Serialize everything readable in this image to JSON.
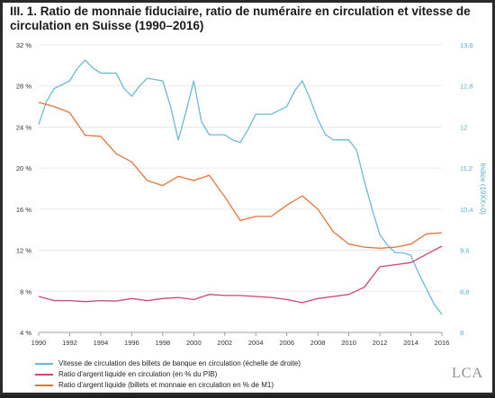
{
  "header": {
    "title": "III. 1. Ratio de monnaie fiduciaire, ratio de numéraire en circulation et vitesse de circulation en Suisse (1990–2016)"
  },
  "chart_data": {
    "type": "line",
    "title": "III. 1. Ratio de monnaie fiduciaire, ratio de numéraire en circulation et vitesse de circulation en Suisse (1990–2016)",
    "xlabel": "",
    "ylabel": "",
    "y2label": "Indice (19XX=0)",
    "xlim": [
      1990,
      2016
    ],
    "ylim": [
      4,
      32
    ],
    "y2lim": [
      8,
      13.6
    ],
    "x_ticks": [
      "1990",
      "1992",
      "1994",
      "1996",
      "1998",
      "2000",
      "2002",
      "2004",
      "2006",
      "2008",
      "2010",
      "2012",
      "2014",
      "2016"
    ],
    "y_ticks": [
      "4 %",
      "8 %",
      "12 %",
      "16 %",
      "20 %",
      "24 %",
      "28 %",
      "32 %"
    ],
    "y2_ticks": [
      "8",
      "8,8",
      "9,6",
      "10,4",
      "11,2",
      "12",
      "12,8",
      "13,6"
    ],
    "grid": "horizontal",
    "legend_position": "bottom",
    "series": [
      {
        "name": "Vitesse de circulation des billets de banque en circulation (échelle de droite)",
        "axis": "right",
        "color": "#6bb9d8",
        "points": [
          [
            1990,
            12.05
          ],
          [
            1990.5,
            12.5
          ],
          [
            1991,
            12.75
          ],
          [
            1992,
            12.9
          ],
          [
            1992.5,
            13.15
          ],
          [
            1993,
            13.3
          ],
          [
            1993.5,
            13.15
          ],
          [
            1994,
            13.05
          ],
          [
            1995,
            13.05
          ],
          [
            1995.5,
            12.75
          ],
          [
            1996,
            12.6
          ],
          [
            1996.5,
            12.8
          ],
          [
            1997,
            12.95
          ],
          [
            1998,
            12.9
          ],
          [
            1998.5,
            12.4
          ],
          [
            1999,
            11.75
          ],
          [
            1999.5,
            12.3
          ],
          [
            2000,
            12.9
          ],
          [
            2000.5,
            12.1
          ],
          [
            2001,
            11.85
          ],
          [
            2002,
            11.85
          ],
          [
            2002.5,
            11.75
          ],
          [
            2003,
            11.7
          ],
          [
            2003.5,
            11.95
          ],
          [
            2004,
            12.25
          ],
          [
            2005,
            12.25
          ],
          [
            2006,
            12.4
          ],
          [
            2006.5,
            12.7
          ],
          [
            2007,
            12.9
          ],
          [
            2007.5,
            12.55
          ],
          [
            2008,
            12.15
          ],
          [
            2008.5,
            11.85
          ],
          [
            2009,
            11.75
          ],
          [
            2010,
            11.75
          ],
          [
            2010.5,
            11.55
          ],
          [
            2011,
            10.95
          ],
          [
            2011.5,
            10.4
          ],
          [
            2012,
            9.9
          ],
          [
            2012.5,
            9.7
          ],
          [
            2013,
            9.55
          ],
          [
            2013.5,
            9.55
          ],
          [
            2014,
            9.5
          ],
          [
            2014.5,
            9.15
          ],
          [
            2015,
            8.85
          ],
          [
            2015.5,
            8.55
          ],
          [
            2016,
            8.35
          ]
        ]
      },
      {
        "name": "Ratio d'argent liquide en circulation (en % du PIB)",
        "axis": "left",
        "color": "#d0446f",
        "points": [
          [
            1990,
            7.5
          ],
          [
            1991,
            7.1
          ],
          [
            1992,
            7.1
          ],
          [
            1993,
            7.0
          ],
          [
            1994,
            7.1
          ],
          [
            1995,
            7.05
          ],
          [
            1996,
            7.3
          ],
          [
            1997,
            7.1
          ],
          [
            1998,
            7.3
          ],
          [
            1999,
            7.4
          ],
          [
            2000,
            7.2
          ],
          [
            2001,
            7.7
          ],
          [
            2002,
            7.6
          ],
          [
            2003,
            7.6
          ],
          [
            2004,
            7.5
          ],
          [
            2005,
            7.4
          ],
          [
            2006,
            7.2
          ],
          [
            2007,
            6.9
          ],
          [
            2008,
            7.3
          ],
          [
            2009,
            7.5
          ],
          [
            2010,
            7.7
          ],
          [
            2011,
            8.4
          ],
          [
            2012,
            10.4
          ],
          [
            2013,
            10.6
          ],
          [
            2014,
            10.8
          ],
          [
            2015,
            11.6
          ],
          [
            2016,
            12.4
          ]
        ]
      },
      {
        "name": "Ratio d'argent liquide (billets et monnaie en circulation en % de M1)",
        "axis": "left",
        "color": "#e5733a",
        "points": [
          [
            1990,
            26.4
          ],
          [
            1991,
            26.0
          ],
          [
            1992,
            25.4
          ],
          [
            1993,
            23.2
          ],
          [
            1994,
            23.1
          ],
          [
            1995,
            21.4
          ],
          [
            1996,
            20.6
          ],
          [
            1997,
            18.8
          ],
          [
            1998,
            18.3
          ],
          [
            1999,
            19.2
          ],
          [
            2000,
            18.8
          ],
          [
            2001,
            19.3
          ],
          [
            2002,
            17.2
          ],
          [
            2003,
            14.9
          ],
          [
            2004,
            15.3
          ],
          [
            2005,
            15.3
          ],
          [
            2006,
            16.4
          ],
          [
            2007,
            17.3
          ],
          [
            2008,
            16.0
          ],
          [
            2009,
            13.8
          ],
          [
            2010,
            12.6
          ],
          [
            2011,
            12.3
          ],
          [
            2012,
            12.2
          ],
          [
            2013,
            12.3
          ],
          [
            2014,
            12.6
          ],
          [
            2015,
            13.6
          ],
          [
            2016,
            13.7
          ]
        ]
      }
    ]
  },
  "brand": {
    "logo_text": "LCA"
  }
}
